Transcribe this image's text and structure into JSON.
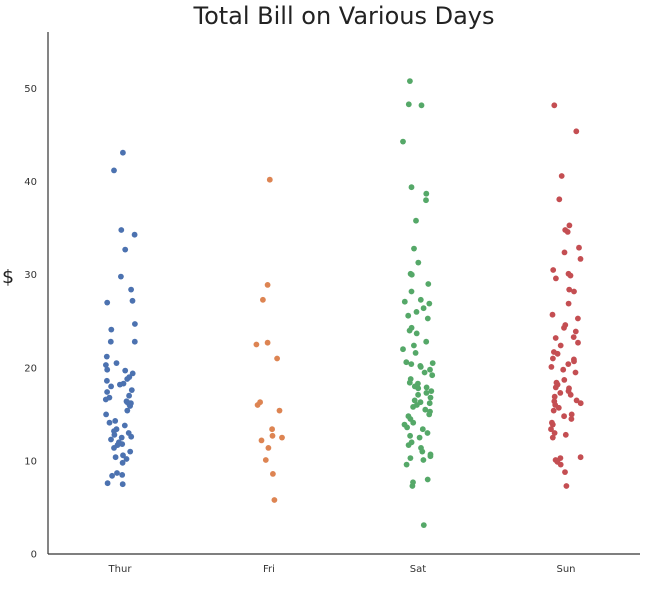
{
  "chart_data": {
    "type": "scatter",
    "title": "Total Bill on Various Days",
    "xlabel": "",
    "ylabel": "$",
    "categories": [
      "Thur",
      "Fri",
      "Sat",
      "Sun"
    ],
    "ylim": [
      0,
      56
    ],
    "yticks": [
      0,
      10,
      20,
      30,
      40,
      50
    ],
    "grid": false,
    "series": [
      {
        "category": "Thur",
        "color": "#4c72b0",
        "values": [
          43.1,
          41.2,
          34.8,
          34.3,
          32.7,
          29.8,
          28.4,
          27.2,
          27.0,
          24.7,
          24.1,
          22.8,
          22.8,
          21.2,
          20.5,
          20.3,
          19.8,
          19.7,
          19.4,
          19.0,
          18.8,
          18.6,
          18.3,
          18.2,
          18.0,
          17.6,
          17.4,
          17.0,
          16.8,
          16.6,
          16.4,
          16.3,
          16.2,
          16.0,
          15.9,
          15.4,
          15.0,
          14.3,
          14.1,
          13.8,
          13.4,
          13.2,
          13.0,
          12.8,
          12.6,
          12.5,
          12.3,
          12.0,
          11.8,
          11.7,
          11.4,
          11.0,
          10.6,
          10.4,
          10.2,
          9.8,
          8.7,
          8.5,
          8.4,
          7.6,
          7.5
        ]
      },
      {
        "category": "Fri",
        "color": "#dd8452",
        "values": [
          40.2,
          28.9,
          27.3,
          22.7,
          22.5,
          21.0,
          16.3,
          16.0,
          15.4,
          13.4,
          12.7,
          12.5,
          12.2,
          11.4,
          10.1,
          8.6,
          5.8
        ]
      },
      {
        "category": "Sat",
        "color": "#55a868",
        "values": [
          50.8,
          48.3,
          48.2,
          44.3,
          39.4,
          38.7,
          38.0,
          35.8,
          32.8,
          31.3,
          30.1,
          30.0,
          29.0,
          28.2,
          27.3,
          27.1,
          26.9,
          26.4,
          26.0,
          25.6,
          25.3,
          24.3,
          24.0,
          23.7,
          22.8,
          22.4,
          22.0,
          21.6,
          20.6,
          20.5,
          20.4,
          20.2,
          20.1,
          19.8,
          19.5,
          19.2,
          18.8,
          18.4,
          18.3,
          18.0,
          17.9,
          17.8,
          17.5,
          17.3,
          17.1,
          16.8,
          16.5,
          16.3,
          16.2,
          16.0,
          15.8,
          15.5,
          15.3,
          15.0,
          14.8,
          14.5,
          14.1,
          13.9,
          13.6,
          13.4,
          13.0,
          12.7,
          12.5,
          12.0,
          11.7,
          11.4,
          11.0,
          10.7,
          10.5,
          10.3,
          10.1,
          9.6,
          8.0,
          7.7,
          7.3,
          3.1
        ]
      },
      {
        "category": "Sun",
        "color": "#c44e52",
        "values": [
          48.2,
          45.4,
          40.6,
          38.1,
          35.3,
          34.8,
          34.6,
          32.9,
          32.4,
          31.7,
          30.5,
          30.1,
          29.9,
          29.6,
          28.4,
          28.2,
          26.9,
          25.7,
          25.3,
          24.6,
          24.3,
          23.9,
          23.3,
          23.2,
          22.7,
          22.4,
          21.7,
          21.5,
          21.0,
          20.9,
          20.7,
          20.4,
          20.1,
          19.8,
          19.5,
          18.7,
          18.4,
          18.2,
          17.9,
          17.8,
          17.5,
          17.3,
          17.1,
          16.9,
          16.5,
          16.4,
          16.2,
          16.0,
          15.7,
          15.4,
          15.0,
          14.8,
          14.5,
          14.1,
          13.9,
          13.4,
          13.0,
          12.8,
          12.5,
          10.4,
          10.3,
          10.1,
          9.9,
          9.6,
          8.8,
          7.3
        ]
      }
    ]
  }
}
